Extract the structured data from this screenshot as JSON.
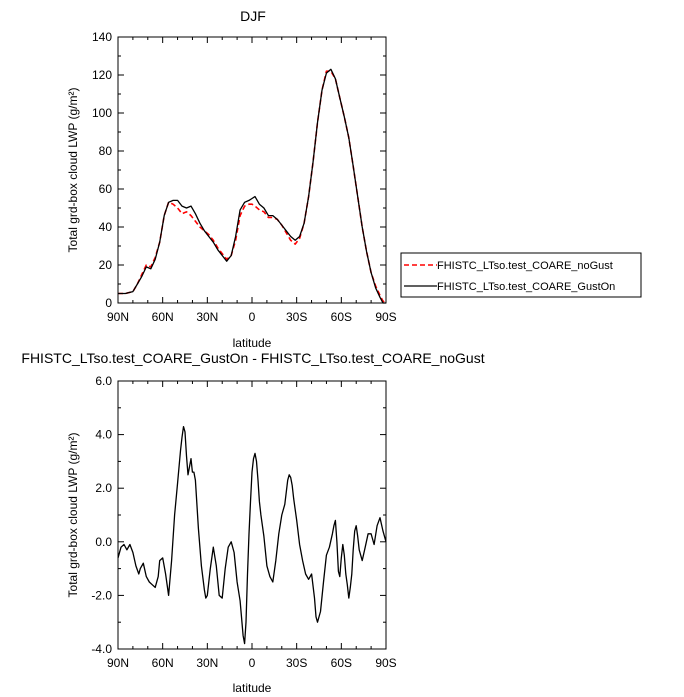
{
  "chart_data": [
    {
      "type": "line",
      "title": "DJF",
      "xlabel": "latitude",
      "ylabel": "Total grd-box cloud LWP (g/m²)",
      "ylim": [
        0,
        140
      ],
      "yticks": [
        0,
        20,
        40,
        60,
        80,
        100,
        120,
        140
      ],
      "xlim": [
        90,
        -90
      ],
      "xticks": [
        90,
        60,
        30,
        0,
        -30,
        -60,
        -90
      ],
      "xtick_labels": [
        "90N",
        "60N",
        "30N",
        "0",
        "30S",
        "60S",
        "90S"
      ],
      "grid": false,
      "legend_placement": "right",
      "series": [
        {
          "name": "FHISTC_LTso.test_COARE_noGust",
          "color": "#ff0000",
          "dash": "dashed",
          "x": [
            90,
            85,
            80,
            77,
            74,
            71,
            68,
            65,
            62,
            59,
            56,
            53,
            50,
            47,
            44,
            41,
            38,
            35,
            32,
            29,
            26,
            23,
            20,
            17,
            14,
            11,
            8,
            5,
            2,
            0,
            -2,
            -5,
            -8,
            -11,
            -14,
            -17,
            -20,
            -23,
            -26,
            -29,
            -32,
            -35,
            -38,
            -41,
            -44,
            -47,
            -50,
            -53,
            -56,
            -59,
            -62,
            -65,
            -68,
            -71,
            -74,
            -77,
            -80,
            -83,
            -86,
            -88,
            -90
          ],
          "y": [
            5,
            5,
            6,
            10,
            15,
            20,
            19,
            24,
            32,
            46,
            53,
            52,
            50,
            47,
            48,
            46,
            43,
            40,
            38,
            36,
            33,
            29,
            26,
            23,
            25,
            33,
            46,
            51,
            52,
            52,
            51,
            49,
            48,
            45,
            45,
            44,
            41,
            37,
            33,
            31,
            34,
            42,
            56,
            74,
            95,
            112,
            122,
            122,
            118,
            108,
            98,
            87,
            72,
            56,
            40,
            27,
            16,
            9,
            4,
            1,
            0
          ]
        },
        {
          "name": "FHISTC_LTso.test_COARE_GustOn",
          "color": "#000000",
          "dash": "solid",
          "x": [
            90,
            85,
            80,
            77,
            74,
            71,
            68,
            65,
            62,
            59,
            56,
            53,
            50,
            47,
            44,
            41,
            38,
            35,
            32,
            29,
            26,
            23,
            20,
            17,
            14,
            11,
            8,
            5,
            2,
            0,
            -2,
            -5,
            -8,
            -11,
            -14,
            -17,
            -20,
            -23,
            -26,
            -29,
            -32,
            -35,
            -38,
            -41,
            -44,
            -47,
            -50,
            -53,
            -56,
            -59,
            -62,
            -65,
            -68,
            -71,
            -74,
            -77,
            -80,
            -83,
            -86,
            -88,
            -90
          ],
          "y": [
            5,
            5,
            6,
            10,
            14,
            19,
            18,
            23,
            32,
            46,
            53,
            54,
            54,
            51,
            50,
            51,
            47,
            42,
            38,
            35,
            32,
            28,
            25,
            22,
            25,
            35,
            49,
            53,
            54,
            55,
            56,
            52,
            50,
            46,
            46,
            44,
            41,
            38,
            35,
            33,
            35,
            42,
            56,
            74,
            95,
            112,
            121,
            123,
            118,
            108,
            98,
            87,
            72,
            56,
            40,
            27,
            16,
            8,
            3,
            0,
            0
          ]
        }
      ]
    },
    {
      "type": "line",
      "title": "FHISTC_LTso.test_COARE_GustOn - FHISTC_LTso.test_COARE_noGust",
      "xlabel": "latitude",
      "ylabel": "Total grd-box cloud LWP (g/m²)",
      "ylim": [
        -4,
        6
      ],
      "yticks": [
        -4,
        -2,
        0,
        2,
        4,
        6
      ],
      "ytick_labels": [
        "-4.0",
        "-2.0",
        "0.0",
        "2.0",
        "4.0",
        "6.0"
      ],
      "xlim": [
        90,
        -90
      ],
      "xticks": [
        90,
        60,
        30,
        0,
        -30,
        -60,
        -90
      ],
      "xtick_labels": [
        "90N",
        "60N",
        "30N",
        "0",
        "30S",
        "60S",
        "90S"
      ],
      "grid": false,
      "series": [
        {
          "color": "#000000",
          "x": [
            90,
            88,
            86,
            84,
            82,
            80,
            78,
            76,
            75,
            73,
            71,
            69,
            67,
            65,
            63,
            62,
            60,
            58,
            56,
            54,
            52,
            50,
            48,
            47,
            46,
            45,
            44,
            43,
            42,
            41,
            40,
            39,
            38,
            36,
            34,
            32,
            31,
            30,
            28,
            26,
            24,
            22,
            20,
            18,
            16,
            14,
            12,
            10,
            8,
            6,
            5,
            4,
            3,
            2,
            1,
            0,
            -1,
            -2,
            -3,
            -4,
            -5,
            -6,
            -8,
            -10,
            -12,
            -14,
            -16,
            -18,
            -20,
            -22,
            -24,
            -25,
            -26,
            -27,
            -28,
            -30,
            -32,
            -34,
            -36,
            -38,
            -40,
            -42,
            -43,
            -44,
            -46,
            -48,
            -50,
            -52,
            -54,
            -55,
            -56,
            -57,
            -58,
            -59,
            -60,
            -61,
            -62,
            -63,
            -64,
            -65,
            -66,
            -67,
            -68,
            -69,
            -70,
            -71,
            -72,
            -74,
            -76,
            -78,
            -80,
            -82,
            -84,
            -86,
            -88,
            -90
          ],
          "y": [
            -0.6,
            -0.2,
            -0.1,
            -0.3,
            -0.1,
            -0.4,
            -0.9,
            -1.2,
            -1.0,
            -0.8,
            -1.3,
            -1.5,
            -1.6,
            -1.7,
            -1.3,
            -0.7,
            -0.6,
            -1.2,
            -2.0,
            -0.7,
            1.0,
            2.2,
            3.4,
            3.9,
            4.3,
            4.1,
            3.2,
            2.5,
            2.8,
            3.1,
            2.6,
            2.6,
            2.3,
            0.5,
            -0.9,
            -1.8,
            -2.1,
            -2.0,
            -1.0,
            -0.2,
            -0.9,
            -2.0,
            -2.1,
            -1.0,
            -0.2,
            0.0,
            -0.4,
            -1.5,
            -2.2,
            -3.5,
            -3.8,
            -3.0,
            -1.2,
            0.3,
            1.5,
            2.6,
            3.1,
            3.3,
            3.0,
            2.3,
            1.5,
            1.0,
            0.2,
            -0.9,
            -1.3,
            -1.5,
            -0.7,
            0.3,
            1.0,
            1.4,
            2.3,
            2.5,
            2.4,
            2.1,
            1.6,
            0.8,
            -0.1,
            -0.7,
            -1.2,
            -1.4,
            -1.2,
            -2.1,
            -2.8,
            -3.0,
            -2.6,
            -1.5,
            -0.5,
            -0.2,
            0.3,
            0.6,
            0.8,
            0.0,
            -1.1,
            -1.3,
            -0.6,
            -0.1,
            -0.5,
            -1.2,
            -1.6,
            -2.1,
            -1.7,
            -1.2,
            -0.3,
            0.4,
            0.6,
            0.2,
            -0.3,
            -0.7,
            -0.2,
            0.3,
            0.3,
            -0.1,
            0.6,
            0.9,
            0.4,
            0.0
          ]
        }
      ]
    }
  ]
}
